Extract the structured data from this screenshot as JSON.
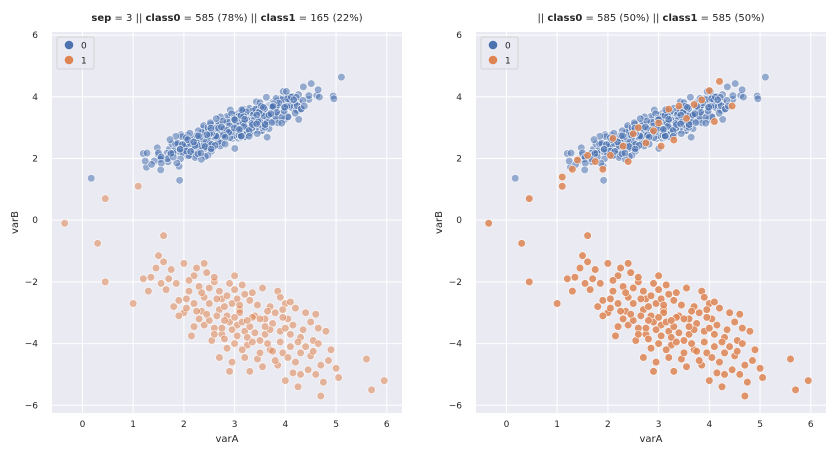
{
  "chart_data": [
    {
      "type": "scatter",
      "title": [
        {
          "text": "sep",
          "bold": true
        },
        {
          "text": " = 3 || ",
          "bold": false
        },
        {
          "text": "class0",
          "bold": true
        },
        {
          "text": " = 585 (78%)  || ",
          "bold": false
        },
        {
          "text": "class1",
          "bold": true
        },
        {
          "text": " = 165 (22%)",
          "bold": false
        }
      ],
      "xlabel": "varA",
      "ylabel": "varB",
      "xlim": [
        -0.6,
        6.3
      ],
      "ylim": [
        -6.25,
        6.1
      ],
      "xticks": [
        0,
        1,
        2,
        3,
        4,
        5,
        6
      ],
      "yticks": [
        -6,
        -4,
        -2,
        0,
        2,
        4,
        6
      ],
      "grid": true,
      "legend": {
        "placement": "top-left",
        "entries": [
          "0",
          "1"
        ]
      },
      "series": [
        {
          "name": "0",
          "color": "#4c72b0",
          "opacity": 0.55,
          "count": 585,
          "center": [
            3.0,
            3.0
          ],
          "spread": [
            0.7,
            0.5
          ],
          "corr": 0.87
        },
        {
          "name": "1",
          "color": "#dd8452",
          "opacity": 0.55,
          "count": 165,
          "center": [
            2.9,
            -3.0
          ],
          "spread": [
            0.95,
            1.2
          ],
          "corr": -0.72,
          "points": [
            [
              -0.35,
              -0.1
            ],
            [
              0.3,
              -0.75
            ],
            [
              0.45,
              -2.0
            ],
            [
              0.45,
              0.7
            ],
            [
              1.0,
              -2.7
            ],
            [
              1.1,
              1.1
            ],
            [
              1.6,
              -0.5
            ],
            [
              1.3,
              -2.3
            ],
            [
              1.5,
              -1.15
            ],
            [
              1.7,
              -1.9
            ],
            [
              2.0,
              -1.4
            ],
            [
              2.1,
              -2.3
            ],
            [
              1.8,
              -2.8
            ],
            [
              2.2,
              -1.8
            ],
            [
              2.3,
              -3.2
            ],
            [
              2.4,
              -2.5
            ],
            [
              2.5,
              -2.2
            ],
            [
              2.6,
              -2.0
            ],
            [
              2.6,
              -3.5
            ],
            [
              2.7,
              -2.9
            ],
            [
              2.75,
              -3.7
            ],
            [
              2.8,
              -2.8
            ],
            [
              2.85,
              -3.1
            ],
            [
              2.9,
              -3.3
            ],
            [
              2.95,
              -2.7
            ],
            [
              3.0,
              -1.8
            ],
            [
              3.05,
              -3.4
            ],
            [
              3.1,
              -2.9
            ],
            [
              3.15,
              -2.1
            ],
            [
              3.2,
              -3.6
            ],
            [
              3.25,
              -3.8
            ],
            [
              3.3,
              -2.6
            ],
            [
              3.4,
              -3.1
            ],
            [
              3.5,
              -3.9
            ],
            [
              3.6,
              -3.2
            ],
            [
              3.7,
              -4.2
            ],
            [
              3.8,
              -3.0
            ],
            [
              3.9,
              -3.6
            ],
            [
              4.0,
              -2.7
            ],
            [
              4.1,
              -4.1
            ],
            [
              4.15,
              -3.4
            ],
            [
              4.2,
              -4.6
            ],
            [
              4.3,
              -3.8
            ],
            [
              4.4,
              -3.0
            ],
            [
              4.5,
              -4.4
            ],
            [
              4.6,
              -5.0
            ],
            [
              4.65,
              -3.5
            ],
            [
              4.7,
              -5.7
            ],
            [
              5.0,
              -4.8
            ],
            [
              5.05,
              -5.1
            ],
            [
              5.6,
              -4.5
            ],
            [
              5.7,
              -5.5
            ],
            [
              5.95,
              -5.2
            ],
            [
              2.4,
              -1.4
            ],
            [
              2.2,
              -2.7
            ],
            [
              3.55,
              -2.2
            ],
            [
              2.0,
              -3.0
            ],
            [
              3.3,
              -4.9
            ],
            [
              2.9,
              -4.9
            ],
            [
              3.7,
              -2.8
            ],
            [
              4.05,
              -3.2
            ],
            [
              4.4,
              -4.1
            ],
            [
              3.95,
              -4.3
            ],
            [
              4.25,
              -5.4
            ],
            [
              4.8,
              -3.6
            ],
            [
              2.55,
              -3.9
            ],
            [
              3.45,
              -4.5
            ],
            [
              3.0,
              -4.0
            ],
            [
              1.9,
              -2.6
            ],
            [
              2.7,
              -2.3
            ],
            [
              3.85,
              -4.7
            ],
            [
              4.0,
              -5.2
            ],
            [
              4.9,
              -4.2
            ],
            [
              3.1,
              -3.0
            ],
            [
              2.95,
              -3.55
            ],
            [
              3.3,
              -3.45
            ],
            [
              3.15,
              -3.3
            ],
            [
              2.8,
              -3.25
            ],
            [
              2.65,
              -3.1
            ],
            [
              3.6,
              -3.7
            ],
            [
              4.35,
              -3.55
            ],
            [
              4.55,
              -3.9
            ],
            [
              4.3,
              -4.3
            ],
            [
              4.7,
              -4.7
            ],
            [
              3.75,
              -3.35
            ],
            [
              3.35,
              -2.35
            ],
            [
              3.05,
              -2.55
            ],
            [
              1.45,
              -1.55
            ],
            [
              1.35,
              -1.85
            ],
            [
              2.5,
              -2.7
            ],
            [
              2.35,
              -2.95
            ],
            [
              2.1,
              -1.95
            ],
            [
              1.65,
              -2.25
            ],
            [
              3.95,
              -2.9
            ],
            [
              2.85,
              -4.15
            ],
            [
              3.2,
              -4.45
            ],
            [
              3.5,
              -3.2
            ],
            [
              4.1,
              -3.7
            ],
            [
              3.65,
              -4.0
            ],
            [
              2.45,
              -1.7
            ],
            [
              3.85,
              -2.3
            ],
            [
              2.6,
              -3.7
            ],
            [
              3.0,
              -2.25
            ],
            [
              1.9,
              -3.1
            ],
            [
              2.25,
              -1.55
            ],
            [
              4.6,
              -3.05
            ],
            [
              4.85,
              -4.55
            ],
            [
              4.2,
              -2.85
            ],
            [
              2.75,
              -2.55
            ],
            [
              3.4,
              -3.65
            ],
            [
              3.75,
              -4.25
            ],
            [
              3.25,
              -4.05
            ],
            [
              2.2,
              -3.45
            ],
            [
              1.75,
              -1.6
            ],
            [
              2.05,
              -2.55
            ],
            [
              4.45,
              -4.85
            ],
            [
              3.9,
              -3.95
            ],
            [
              2.3,
              -2.15
            ],
            [
              4.75,
              -5.25
            ],
            [
              3.55,
              -4.75
            ],
            [
              3.35,
              -3.95
            ],
            [
              4.15,
              -4.95
            ],
            [
              3.1,
              -2.75
            ],
            [
              2.4,
              -3.4
            ],
            [
              3.65,
              -2.95
            ],
            [
              2.9,
              -2.05
            ],
            [
              1.55,
              -2.05
            ],
            [
              4.5,
              -3.3
            ],
            [
              2.15,
              -3.75
            ],
            [
              2.7,
              -4.45
            ],
            [
              3.45,
              -2.75
            ],
            [
              4.0,
              -3.5
            ],
            [
              2.35,
              -2.35
            ],
            [
              3.8,
              -4.55
            ],
            [
              1.2,
              -1.9
            ],
            [
              2.85,
              -2.45
            ],
            [
              2.5,
              -3.25
            ],
            [
              3.05,
              -3.75
            ],
            [
              3.2,
              -2.4
            ],
            [
              4.25,
              -3.95
            ],
            [
              2.6,
              -1.85
            ],
            [
              1.85,
              -2.05
            ],
            [
              3.7,
              -3.55
            ],
            [
              4.1,
              -2.65
            ],
            [
              2.95,
              -4.6
            ],
            [
              3.5,
              -4.3
            ],
            [
              3.95,
              -3.15
            ],
            [
              4.55,
              -4.25
            ],
            [
              2.05,
              -2.85
            ],
            [
              1.6,
              -1.35
            ],
            [
              3.35,
              -3.15
            ],
            [
              2.8,
              -3.85
            ],
            [
              4.3,
              -5.0
            ],
            [
              3.9,
              -2.5
            ],
            [
              3.15,
              -4.2
            ],
            [
              2.45,
              -3.05
            ],
            [
              2.65,
              -2.55
            ],
            [
              4.65,
              -4.0
            ],
            [
              2.25,
              -2.95
            ],
            [
              3.6,
              -3.45
            ],
            [
              3.0,
              -3.15
            ],
            [
              2.75,
              -3.5
            ],
            [
              4.05,
              -4.45
            ],
            [
              3.25,
              -3.25
            ]
          ]
        }
      ],
      "draw_order": [
        "0",
        "1"
      ]
    },
    {
      "type": "scatter",
      "title": [
        {
          "text": "|| ",
          "bold": false
        },
        {
          "text": "class0",
          "bold": true
        },
        {
          "text": " = 585 (50%)  || ",
          "bold": false
        },
        {
          "text": "class1",
          "bold": true
        },
        {
          "text": " = 585 (50%)",
          "bold": false
        }
      ],
      "xlabel": "varA",
      "ylabel": "varB",
      "xlim": [
        -0.6,
        6.3
      ],
      "ylim": [
        -6.25,
        6.1
      ],
      "xticks": [
        0,
        1,
        2,
        3,
        4,
        5,
        6
      ],
      "yticks": [
        -6,
        -4,
        -2,
        0,
        2,
        4,
        6
      ],
      "grid": true,
      "legend": {
        "placement": "top-left",
        "entries": [
          "0",
          "1"
        ]
      },
      "series": [
        {
          "name": "0",
          "color": "#4c72b0",
          "opacity": 0.55,
          "count": 585,
          "center": [
            3.0,
            3.0
          ],
          "spread": [
            0.7,
            0.5
          ],
          "corr": 0.87
        },
        {
          "name": "1",
          "color": "#dd8452",
          "opacity": 0.85,
          "count": 585,
          "oversampled_from": 0,
          "extra_points": [
            [
              1.3,
              1.65
            ],
            [
              1.4,
              1.95
            ],
            [
              1.6,
              2.1
            ],
            [
              1.75,
              1.9
            ],
            [
              1.9,
              1.65
            ],
            [
              2.05,
              2.1
            ],
            [
              2.3,
              2.4
            ],
            [
              2.4,
              1.9
            ],
            [
              2.5,
              2.8
            ],
            [
              2.6,
              3.0
            ],
            [
              2.75,
              2.5
            ],
            [
              2.9,
              2.9
            ],
            [
              3.0,
              3.15
            ],
            [
              3.05,
              2.4
            ],
            [
              3.2,
              3.6
            ],
            [
              3.4,
              3.7
            ],
            [
              3.55,
              3.3
            ],
            [
              3.7,
              3.75
            ],
            [
              3.85,
              3.9
            ],
            [
              4.0,
              4.2
            ],
            [
              4.2,
              4.5
            ],
            [
              4.45,
              3.7
            ],
            [
              4.1,
              3.2
            ],
            [
              3.3,
              2.6
            ],
            [
              2.1,
              2.65
            ],
            [
              1.1,
              1.4
            ]
          ]
        }
      ],
      "draw_order": [
        "0",
        "1"
      ]
    }
  ]
}
